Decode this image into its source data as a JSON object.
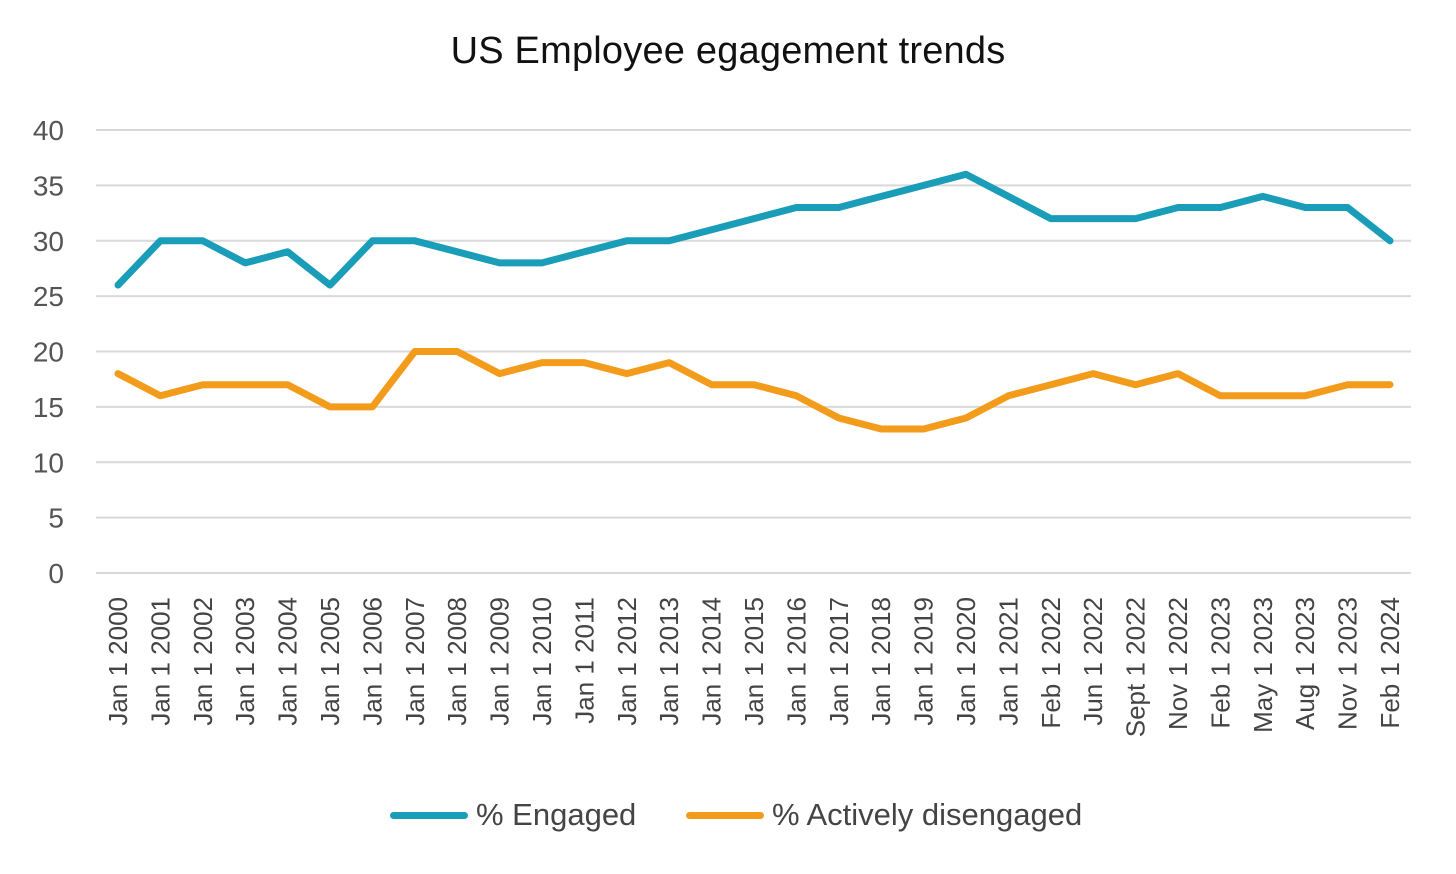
{
  "chart_data": {
    "type": "line",
    "title": "US Employee egagement trends",
    "xlabel": "",
    "ylabel": "",
    "ylim": [
      0,
      40
    ],
    "yticks": [
      0,
      5,
      10,
      15,
      20,
      25,
      30,
      35,
      40
    ],
    "grid": true,
    "legend_position": "bottom",
    "categories": [
      "Jan 1 2000",
      "Jan 1 2001",
      "Jan 1 2002",
      "Jan 1 2003",
      "Jan 1 2004",
      "Jan 1 2005",
      "Jan 1 2006",
      "Jan 1 2007",
      "Jan 1 2008",
      "Jan 1 2009",
      "Jan 1 2010",
      "Jan 1 2011",
      "Jan 1 2012",
      "Jan 1 2013",
      "Jan 1 2014",
      "Jan 1 2015",
      "Jan 1 2016",
      "Jan 1 2017",
      "Jan 1 2018",
      "Jan 1 2019",
      "Jan 1 2020",
      "Jan 1 2021",
      "Feb 1 2022",
      "Jun 1 2022",
      "Sept 1 2022",
      "Nov 1 2022",
      "Feb 1 2023",
      "May 1 2023",
      "Aug 1 2023",
      "Nov 1 2023",
      "Feb 1 2024"
    ],
    "series": [
      {
        "name": "% Engaged",
        "color": "#1A9DB8",
        "values": [
          26,
          30,
          30,
          28,
          29,
          26,
          30,
          30,
          29,
          28,
          28,
          29,
          30,
          30,
          31,
          32,
          33,
          33,
          34,
          35,
          36,
          34,
          32,
          32,
          32,
          33,
          33,
          34,
          33,
          33,
          30
        ]
      },
      {
        "name": "% Actively disengaged",
        "color": "#F39C1B",
        "values": [
          18,
          16,
          17,
          17,
          17,
          15,
          15,
          20,
          20,
          18,
          19,
          19,
          18,
          19,
          17,
          17,
          16,
          14,
          13,
          13,
          14,
          16,
          17,
          18,
          17,
          18,
          16,
          16,
          16,
          17,
          17
        ]
      }
    ]
  }
}
